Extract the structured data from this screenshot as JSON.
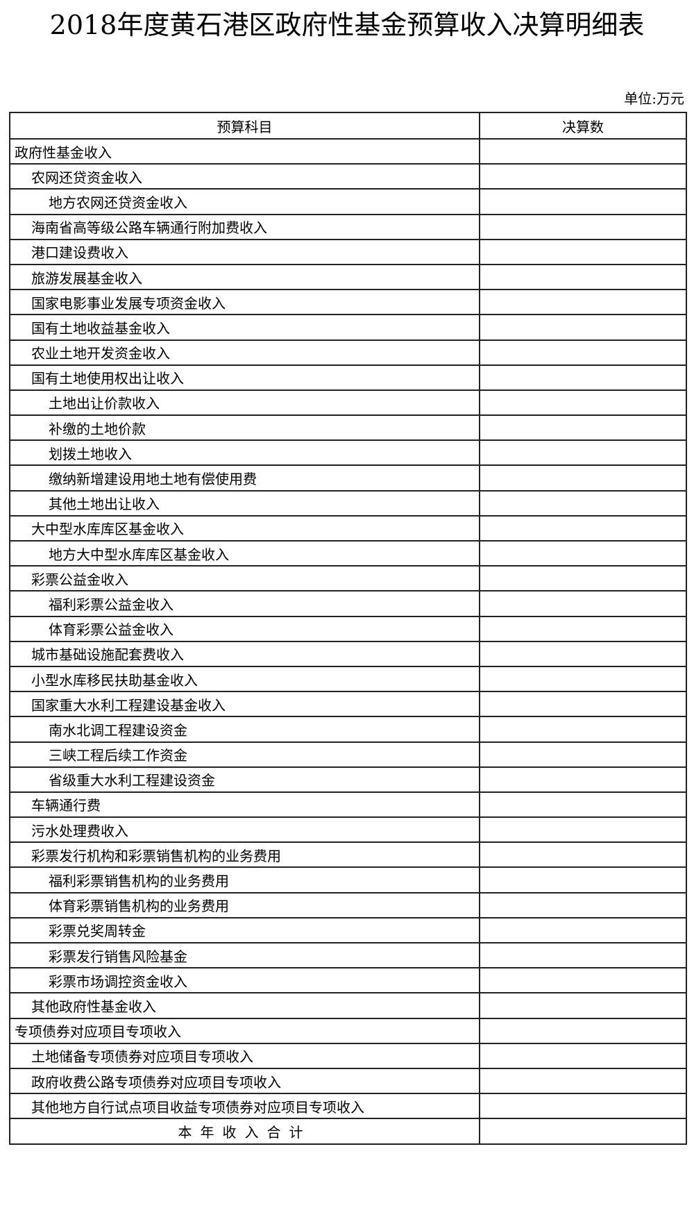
{
  "title": "2018年度黄石港区政府性基金预算收入决算明细表",
  "unit": "单位:万元",
  "table": {
    "headers": [
      "预算科目",
      "决算数"
    ],
    "rows": [
      {
        "name": "政府性基金收入",
        "level": 0,
        "value": ""
      },
      {
        "name": "农网还贷资金收入",
        "level": 1,
        "value": ""
      },
      {
        "name": "地方农网还贷资金收入",
        "level": 2,
        "value": ""
      },
      {
        "name": "海南省高等级公路车辆通行附加费收入",
        "level": 1,
        "value": ""
      },
      {
        "name": "港口建设费收入",
        "level": 1,
        "value": ""
      },
      {
        "name": "旅游发展基金收入",
        "level": 1,
        "value": ""
      },
      {
        "name": "国家电影事业发展专项资金收入",
        "level": 1,
        "value": ""
      },
      {
        "name": "国有土地收益基金收入",
        "level": 1,
        "value": ""
      },
      {
        "name": "农业土地开发资金收入",
        "level": 1,
        "value": ""
      },
      {
        "name": "国有土地使用权出让收入",
        "level": 1,
        "value": ""
      },
      {
        "name": "土地出让价款收入",
        "level": 2,
        "value": ""
      },
      {
        "name": "补缴的土地价款",
        "level": 2,
        "value": ""
      },
      {
        "name": "划拨土地收入",
        "level": 2,
        "value": ""
      },
      {
        "name": "缴纳新增建设用地土地有偿使用费",
        "level": 2,
        "value": ""
      },
      {
        "name": "其他土地出让收入",
        "level": 2,
        "value": ""
      },
      {
        "name": "大中型水库库区基金收入",
        "level": 1,
        "value": ""
      },
      {
        "name": "地方大中型水库库区基金收入",
        "level": 2,
        "value": ""
      },
      {
        "name": "彩票公益金收入",
        "level": 1,
        "value": ""
      },
      {
        "name": "福利彩票公益金收入",
        "level": 2,
        "value": ""
      },
      {
        "name": "体育彩票公益金收入",
        "level": 2,
        "value": ""
      },
      {
        "name": "城市基础设施配套费收入",
        "level": 1,
        "value": ""
      },
      {
        "name": "小型水库移民扶助基金收入",
        "level": 1,
        "value": ""
      },
      {
        "name": "国家重大水利工程建设基金收入",
        "level": 1,
        "value": ""
      },
      {
        "name": "南水北调工程建设资金",
        "level": 2,
        "value": ""
      },
      {
        "name": "三峡工程后续工作资金",
        "level": 2,
        "value": ""
      },
      {
        "name": "省级重大水利工程建设资金",
        "level": 2,
        "value": ""
      },
      {
        "name": "车辆通行费",
        "level": 1,
        "value": ""
      },
      {
        "name": "污水处理费收入",
        "level": 1,
        "value": ""
      },
      {
        "name": "彩票发行机构和彩票销售机构的业务费用",
        "level": 1,
        "value": ""
      },
      {
        "name": "福利彩票销售机构的业务费用",
        "level": 2,
        "value": ""
      },
      {
        "name": "体育彩票销售机构的业务费用",
        "level": 2,
        "value": ""
      },
      {
        "name": "彩票兑奖周转金",
        "level": 2,
        "value": ""
      },
      {
        "name": "彩票发行销售风险基金",
        "level": 2,
        "value": ""
      },
      {
        "name": "彩票市场调控资金收入",
        "level": 2,
        "value": ""
      },
      {
        "name": "其他政府性基金收入",
        "level": 1,
        "value": ""
      },
      {
        "name": "专项债券对应项目专项收入",
        "level": 0,
        "value": ""
      },
      {
        "name": "土地储备专项债券对应项目专项收入",
        "level": 1,
        "value": ""
      },
      {
        "name": "政府收费公路专项债券对应项目专项收入",
        "level": 1,
        "value": ""
      },
      {
        "name": "其他地方自行试点项目收益专项债券对应项目专项收入",
        "level": 1,
        "value": ""
      }
    ],
    "total": {
      "name": "本年收入合计",
      "value": ""
    }
  }
}
